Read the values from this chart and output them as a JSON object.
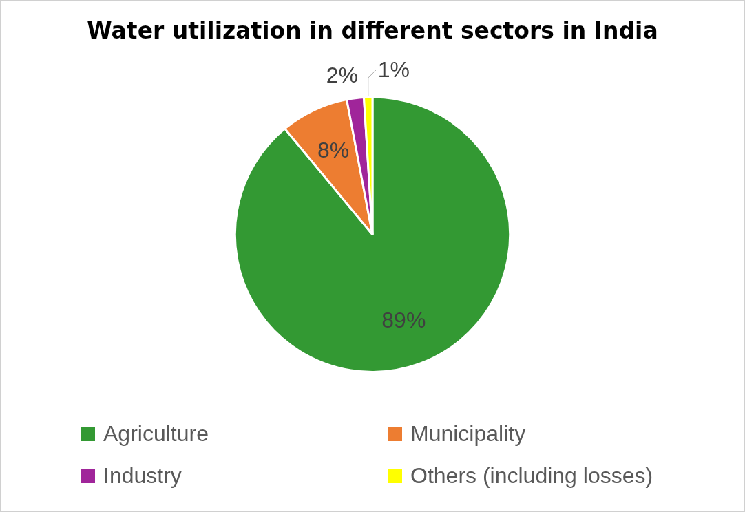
{
  "chart_data": {
    "type": "pie",
    "title": "Water utilization in different sectors in India",
    "categories": [
      "Agriculture",
      "Municipality",
      "Industry",
      "Others (including losses)"
    ],
    "values": [
      89,
      8,
      2,
      1
    ],
    "colors": [
      "#339933",
      "#ed7d31",
      "#a0259a",
      "#ffff00"
    ],
    "value_labels": [
      "89%",
      "8%",
      "2%",
      "1%"
    ],
    "legend": "bottom"
  }
}
